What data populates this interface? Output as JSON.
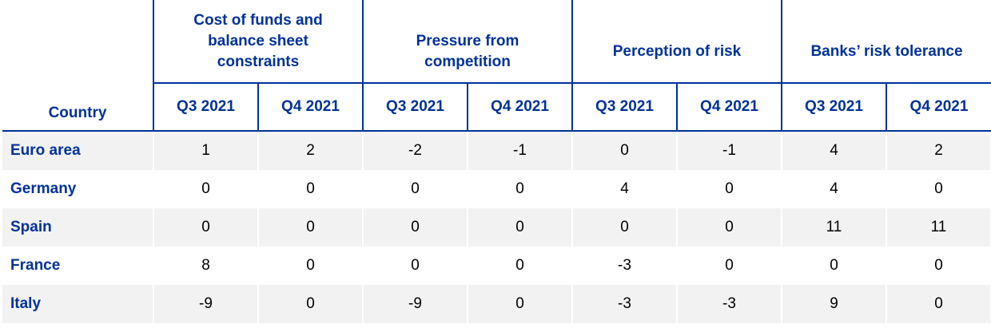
{
  "table": {
    "country_header": "Country",
    "groups": [
      "Cost of funds and balance sheet constraints",
      "Pressure from competition",
      "Perception of risk",
      "Banks’ risk tolerance"
    ],
    "periods": [
      "Q3 2021",
      "Q4 2021"
    ],
    "rows": [
      {
        "country": "Euro area",
        "values": [
          "1",
          "2",
          "-2",
          "-1",
          "0",
          "-1",
          "4",
          "2"
        ]
      },
      {
        "country": "Germany",
        "values": [
          "0",
          "0",
          "0",
          "0",
          "4",
          "0",
          "4",
          "0"
        ]
      },
      {
        "country": "Spain",
        "values": [
          "0",
          "0",
          "0",
          "0",
          "0",
          "0",
          "11",
          "11"
        ]
      },
      {
        "country": "France",
        "values": [
          "8",
          "0",
          "0",
          "0",
          "-3",
          "0",
          "0",
          "0"
        ]
      },
      {
        "country": "Italy",
        "values": [
          "-9",
          "0",
          "-9",
          "0",
          "-3",
          "-3",
          "9",
          "0"
        ]
      }
    ]
  },
  "colors": {
    "header_text": "#003299",
    "rule": "#003299",
    "shaded_row": "#f2f2f2"
  }
}
